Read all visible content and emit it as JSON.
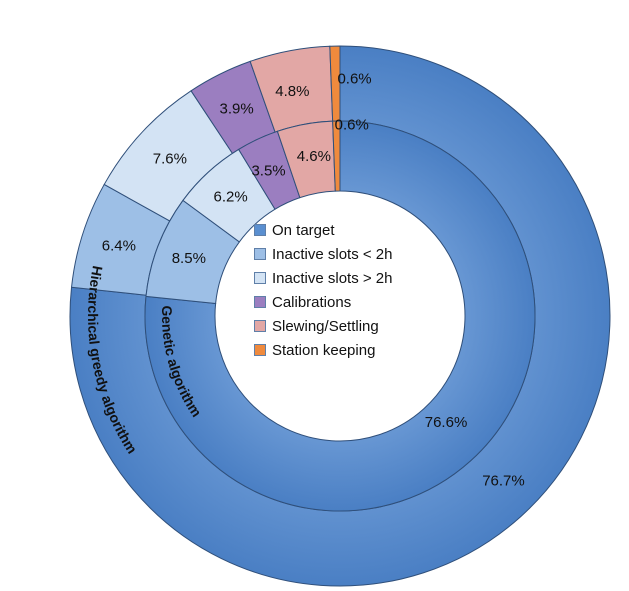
{
  "chart_data": {
    "type": "donut",
    "categories": [
      "On target",
      "Inactive slots < 2h",
      "Inactive slots > 2h",
      "Calibrations",
      "Slewing/Settling",
      "Station keeping"
    ],
    "colors": [
      "#5a8fd0",
      "#9dbfe6",
      "#d3e3f4",
      "#9b7ec0",
      "#e2a7a5",
      "#ef8a3d"
    ],
    "series": [
      {
        "name": "Hierarchical greedy algorithm",
        "ring": "outer",
        "values": [
          76.7,
          6.4,
          7.6,
          3.9,
          4.8,
          0.6
        ],
        "labels": [
          "76.7%",
          "6.4%",
          "7.6%",
          "3.9%",
          "4.8%",
          "0.6%"
        ]
      },
      {
        "name": "Genetic algorithm",
        "ring": "inner",
        "values": [
          76.6,
          8.5,
          6.2,
          3.5,
          4.6,
          0.6
        ],
        "labels": [
          "76.6%",
          "8.5%",
          "6.2%",
          "3.5%",
          "4.6%",
          "0.6%"
        ]
      }
    ],
    "legend": {
      "placement": "center",
      "entries": [
        "On target",
        "Inactive slots < 2h",
        "Inactive slots > 2h",
        "Calibrations",
        "Slewing/Settling",
        "Station keeping"
      ]
    }
  }
}
